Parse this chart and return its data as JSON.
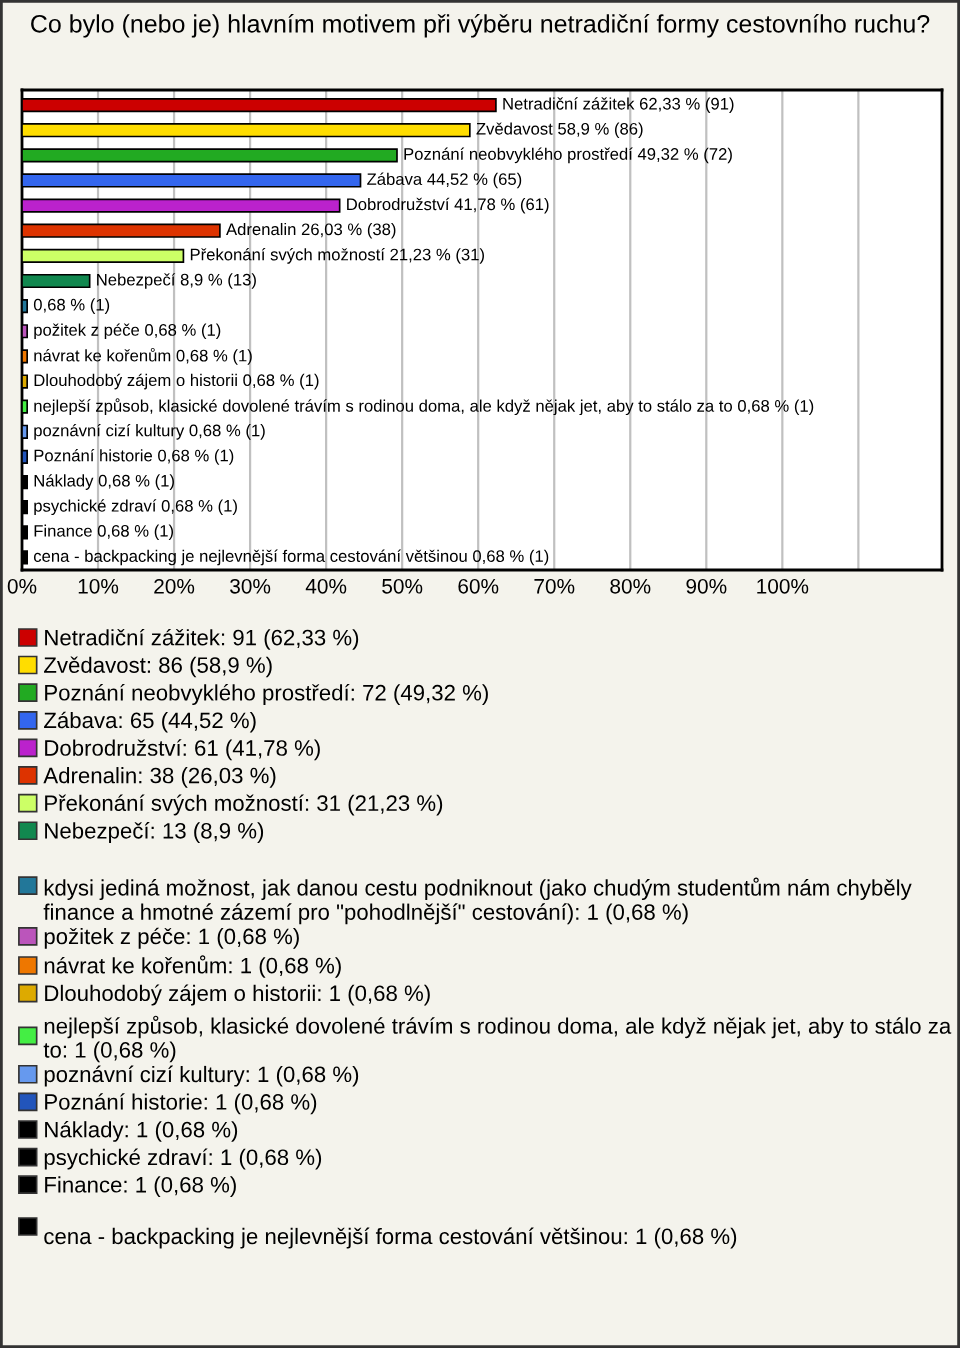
{
  "chart_data": {
    "type": "bar",
    "orientation": "horizontal",
    "title": "Co bylo (nebo je) hlavním motivem při výběru netradiční formy cestovního ruchu?",
    "categories": [
      null,
      null,
      null,
      null,
      null,
      null,
      null,
      null,
      null,
      null,
      null,
      null,
      null,
      null,
      null,
      null,
      null,
      null,
      null
    ],
    "series": [
      {
        "name": "Netradiční zážitek: 91 (62,33 %)",
        "color": "#cc0000",
        "values": [
          62.33,
          null,
          null,
          null,
          null,
          null,
          null,
          null,
          null,
          null,
          null,
          null,
          null,
          null,
          null,
          null,
          null,
          null,
          null
        ],
        "value_labels": [
          "Netradiční zážitek 62,33 % (91)",
          null,
          null,
          null,
          null,
          null,
          null,
          null,
          null,
          null,
          null,
          null,
          null,
          null,
          null,
          null,
          null,
          null,
          null
        ]
      },
      {
        "name": "Zvědavost: 86 (58,9 %)",
        "color": "#ffdd00",
        "values": [
          null,
          58.9,
          null,
          null,
          null,
          null,
          null,
          null,
          null,
          null,
          null,
          null,
          null,
          null,
          null,
          null,
          null,
          null,
          null
        ],
        "value_labels": [
          null,
          "Zvědavost 58,9 % (86)",
          null,
          null,
          null,
          null,
          null,
          null,
          null,
          null,
          null,
          null,
          null,
          null,
          null,
          null,
          null,
          null,
          null
        ]
      },
      {
        "name": "Poznání neobvyklého prostředí: 72 (49,32 %)",
        "color": "#22aa22",
        "values": [
          null,
          null,
          49.32,
          null,
          null,
          null,
          null,
          null,
          null,
          null,
          null,
          null,
          null,
          null,
          null,
          null,
          null,
          null,
          null
        ],
        "value_labels": [
          null,
          null,
          "Poznání neobvyklého prostředí 49,32 % (72)",
          null,
          null,
          null,
          null,
          null,
          null,
          null,
          null,
          null,
          null,
          null,
          null,
          null,
          null,
          null,
          null
        ]
      },
      {
        "name": "Zábava: 65 (44,52 %)",
        "color": "#3366ee",
        "values": [
          null,
          null,
          null,
          44.52,
          null,
          null,
          null,
          null,
          null,
          null,
          null,
          null,
          null,
          null,
          null,
          null,
          null,
          null,
          null
        ],
        "value_labels": [
          null,
          null,
          null,
          "Zábava 44,52 % (65)",
          null,
          null,
          null,
          null,
          null,
          null,
          null,
          null,
          null,
          null,
          null,
          null,
          null,
          null,
          null
        ]
      },
      {
        "name": "Dobrodružství: 61 (41,78 %)",
        "color": "#bb22cc",
        "values": [
          null,
          null,
          null,
          null,
          41.78,
          null,
          null,
          null,
          null,
          null,
          null,
          null,
          null,
          null,
          null,
          null,
          null,
          null,
          null
        ],
        "value_labels": [
          null,
          null,
          null,
          null,
          "Dobrodružství 41,78 % (61)",
          null,
          null,
          null,
          null,
          null,
          null,
          null,
          null,
          null,
          null,
          null,
          null,
          null,
          null
        ]
      },
      {
        "name": "Adrenalin: 38 (26,03 %)",
        "color": "#dd3300",
        "values": [
          null,
          null,
          null,
          null,
          null,
          26.03,
          null,
          null,
          null,
          null,
          null,
          null,
          null,
          null,
          null,
          null,
          null,
          null,
          null
        ],
        "value_labels": [
          null,
          null,
          null,
          null,
          null,
          "Adrenalin 26,03 % (38)",
          null,
          null,
          null,
          null,
          null,
          null,
          null,
          null,
          null,
          null,
          null,
          null,
          null
        ]
      },
      {
        "name": "Překonání svých možností: 31 (21,23 %)",
        "color": "#ccff66",
        "values": [
          null,
          null,
          null,
          null,
          null,
          null,
          21.23,
          null,
          null,
          null,
          null,
          null,
          null,
          null,
          null,
          null,
          null,
          null,
          null
        ],
        "value_labels": [
          null,
          null,
          null,
          null,
          null,
          null,
          "Překonání svých možností 21,23 % (31)",
          null,
          null,
          null,
          null,
          null,
          null,
          null,
          null,
          null,
          null,
          null,
          null
        ]
      },
      {
        "name": "Nebezpečí: 13 (8,9 %)",
        "color": "#11884f",
        "values": [
          null,
          null,
          null,
          null,
          null,
          null,
          null,
          8.9,
          null,
          null,
          null,
          null,
          null,
          null,
          null,
          null,
          null,
          null,
          null
        ],
        "value_labels": [
          null,
          null,
          null,
          null,
          null,
          null,
          null,
          "Nebezpečí 8,9 % (13)",
          null,
          null,
          null,
          null,
          null,
          null,
          null,
          null,
          null,
          null,
          null
        ]
      },
      {
        "name": "kdysi jediná možnost, jak danou cestu podniknout (jako chudým studentům nám chyběly finance a hmotné zázemí pro \"pohodlnější\" cestování): 1 (0,68 %)",
        "color": "#227799",
        "values": [
          null,
          null,
          null,
          null,
          null,
          null,
          null,
          null,
          0.68,
          null,
          null,
          null,
          null,
          null,
          null,
          null,
          null,
          null,
          null
        ],
        "value_labels": [
          null,
          null,
          null,
          null,
          null,
          null,
          null,
          null,
          "0,68 % (1)",
          null,
          null,
          null,
          null,
          null,
          null,
          null,
          null,
          null,
          null
        ]
      },
      {
        "name": "požitek z péče: 1 (0,68 %)",
        "color": "#bb55bb",
        "values": [
          null,
          null,
          null,
          null,
          null,
          null,
          null,
          null,
          null,
          0.68,
          null,
          null,
          null,
          null,
          null,
          null,
          null,
          null,
          null
        ],
        "value_labels": [
          null,
          null,
          null,
          null,
          null,
          null,
          null,
          null,
          null,
          "požitek z péče 0,68 % (1)",
          null,
          null,
          null,
          null,
          null,
          null,
          null,
          null,
          null
        ]
      },
      {
        "name": "návrat ke kořenům: 1 (0,68 %)",
        "color": "#ee7700",
        "values": [
          null,
          null,
          null,
          null,
          null,
          null,
          null,
          null,
          null,
          null,
          0.68,
          null,
          null,
          null,
          null,
          null,
          null,
          null,
          null
        ],
        "value_labels": [
          null,
          null,
          null,
          null,
          null,
          null,
          null,
          null,
          null,
          null,
          "návrat ke kořenům 0,68 % (1)",
          null,
          null,
          null,
          null,
          null,
          null,
          null,
          null
        ]
      },
      {
        "name": "Dlouhodobý zájem o historii: 1 (0,68 %)",
        "color": "#ddaa00",
        "values": [
          null,
          null,
          null,
          null,
          null,
          null,
          null,
          null,
          null,
          null,
          null,
          0.68,
          null,
          null,
          null,
          null,
          null,
          null,
          null
        ],
        "value_labels": [
          null,
          null,
          null,
          null,
          null,
          null,
          null,
          null,
          null,
          null,
          null,
          "Dlouhodobý zájem o historii 0,68 % (1)",
          null,
          null,
          null,
          null,
          null,
          null,
          null
        ]
      },
      {
        "name": "nejlepší způsob, klasické dovolené trávím s rodinou doma, ale když nějak jet, aby to stálo za to: 1 (0,68 %)",
        "color": "#44ee44",
        "values": [
          null,
          null,
          null,
          null,
          null,
          null,
          null,
          null,
          null,
          null,
          null,
          null,
          0.68,
          null,
          null,
          null,
          null,
          null,
          null
        ],
        "value_labels": [
          null,
          null,
          null,
          null,
          null,
          null,
          null,
          null,
          null,
          null,
          null,
          null,
          "nejlepší způsob, klasické dovolené trávím s rodinou doma, ale když nějak jet, aby to stálo za to 0,68 % (1)",
          null,
          null,
          null,
          null,
          null,
          null
        ]
      },
      {
        "name": "poznávní cizí kultury: 1 (0,68 %)",
        "color": "#6699ee",
        "values": [
          null,
          null,
          null,
          null,
          null,
          null,
          null,
          null,
          null,
          null,
          null,
          null,
          null,
          0.68,
          null,
          null,
          null,
          null,
          null
        ],
        "value_labels": [
          null,
          null,
          null,
          null,
          null,
          null,
          null,
          null,
          null,
          null,
          null,
          null,
          null,
          "poznávní cizí kultury 0,68 % (1)",
          null,
          null,
          null,
          null,
          null
        ]
      },
      {
        "name": "Poznání historie: 1 (0,68 %)",
        "color": "#2255bb",
        "values": [
          null,
          null,
          null,
          null,
          null,
          null,
          null,
          null,
          null,
          null,
          null,
          null,
          null,
          null,
          0.68,
          null,
          null,
          null,
          null
        ],
        "value_labels": [
          null,
          null,
          null,
          null,
          null,
          null,
          null,
          null,
          null,
          null,
          null,
          null,
          null,
          null,
          "Poznání historie 0,68 % (1)",
          null,
          null,
          null,
          null
        ]
      },
      {
        "name": "Náklady: 1 (0,68 %)",
        "color": "#000000",
        "values": [
          null,
          null,
          null,
          null,
          null,
          null,
          null,
          null,
          null,
          null,
          null,
          null,
          null,
          null,
          null,
          0.68,
          null,
          null,
          null
        ],
        "value_labels": [
          null,
          null,
          null,
          null,
          null,
          null,
          null,
          null,
          null,
          null,
          null,
          null,
          null,
          null,
          null,
          "Náklady 0,68 % (1)",
          null,
          null,
          null
        ]
      },
      {
        "name": "psychické zdraví: 1 (0,68 %)",
        "color": "#000000",
        "values": [
          null,
          null,
          null,
          null,
          null,
          null,
          null,
          null,
          null,
          null,
          null,
          null,
          null,
          null,
          null,
          null,
          0.68,
          null,
          null
        ],
        "value_labels": [
          null,
          null,
          null,
          null,
          null,
          null,
          null,
          null,
          null,
          null,
          null,
          null,
          null,
          null,
          null,
          null,
          "psychické zdraví 0,68 % (1)",
          null,
          null
        ]
      },
      {
        "name": "Finance: 1 (0,68 %)",
        "color": "#000000",
        "values": [
          null,
          null,
          null,
          null,
          null,
          null,
          null,
          null,
          null,
          null,
          null,
          null,
          null,
          null,
          null,
          null,
          null,
          0.68,
          null
        ],
        "value_labels": [
          null,
          null,
          null,
          null,
          null,
          null,
          null,
          null,
          null,
          null,
          null,
          null,
          null,
          null,
          null,
          null,
          null,
          "Finance 0,68 % (1)",
          null
        ]
      },
      {
        "name": "cena - backpacking je nejlevnější forma cestování většinou: 1 (0,68 %)",
        "color": "#000000",
        "values": [
          null,
          null,
          null,
          null,
          null,
          null,
          null,
          null,
          null,
          null,
          null,
          null,
          null,
          null,
          null,
          null,
          null,
          null,
          0.68
        ],
        "value_labels": [
          null,
          null,
          null,
          null,
          null,
          null,
          null,
          null,
          null,
          null,
          null,
          null,
          null,
          null,
          null,
          null,
          null,
          null,
          "cena - backpacking je nejlevnější forma cestování většinou 0,68 % (1)"
        ]
      }
    ],
    "xlim": [
      0,
      121
    ],
    "xticks": [
      {
        "value": 0,
        "label": "0%"
      },
      {
        "value": 10,
        "label": "10%"
      },
      {
        "value": 20,
        "label": "20%"
      },
      {
        "value": 30,
        "label": "30%"
      },
      {
        "value": 40,
        "label": "40%"
      },
      {
        "value": 50,
        "label": "50%"
      },
      {
        "value": 60,
        "label": "60%"
      },
      {
        "value": 70,
        "label": "70%"
      },
      {
        "value": 80,
        "label": "80%"
      },
      {
        "value": 90,
        "label": "90%"
      },
      {
        "value": 100,
        "label": "100%"
      },
      {
        "value": 110,
        "label": null
      }
    ],
    "grid": "x",
    "tick_labels": "x",
    "legend": "bottom"
  }
}
